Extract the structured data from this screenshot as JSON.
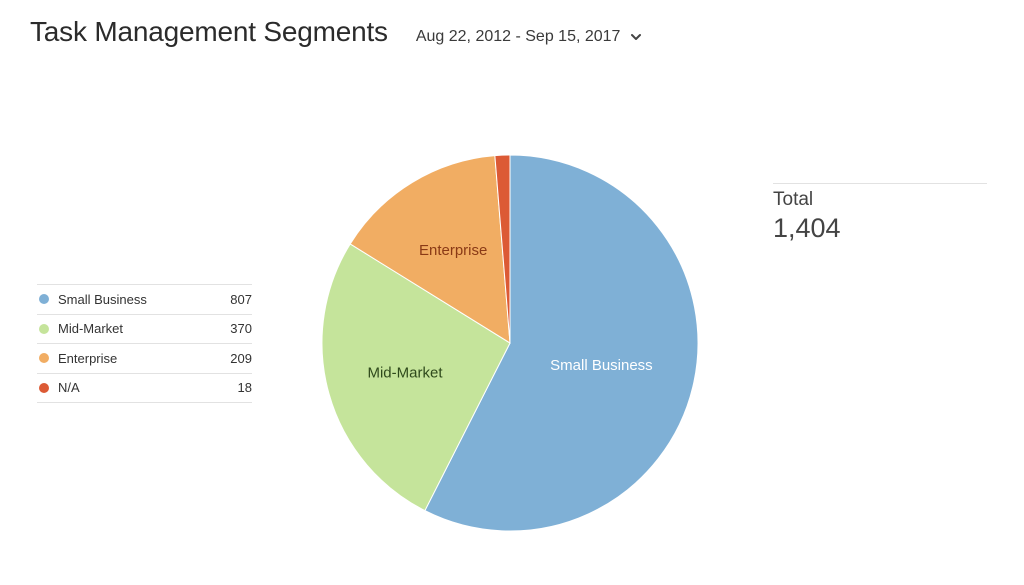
{
  "header": {
    "title": "Task Management Segments",
    "date_range": "Aug 22, 2012 - Sep 15, 2017"
  },
  "legend": [
    {
      "name": "Small Business",
      "value": "807"
    },
    {
      "name": "Mid-Market",
      "value": "370"
    },
    {
      "name": "Enterprise",
      "value": "209"
    },
    {
      "name": "N/A",
      "value": "18"
    }
  ],
  "total": {
    "label": "Total",
    "value": "1,404"
  },
  "colors": {
    "Small Business": "#7fb0d6",
    "Mid-Market": "#c5e49b",
    "Enterprise": "#f1ad63",
    "N/A": "#dc5a35"
  },
  "chart_data": {
    "type": "pie",
    "categories": [
      "Small Business",
      "Mid-Market",
      "Enterprise",
      "N/A"
    ],
    "values": [
      807,
      370,
      209,
      18
    ],
    "slice_labels": [
      "Small Business",
      "Mid-Market",
      "Enterprise",
      ""
    ],
    "label_colors": [
      "#ffffff",
      "#2f4a1c",
      "#8a3a16",
      "#ffffff"
    ]
  }
}
